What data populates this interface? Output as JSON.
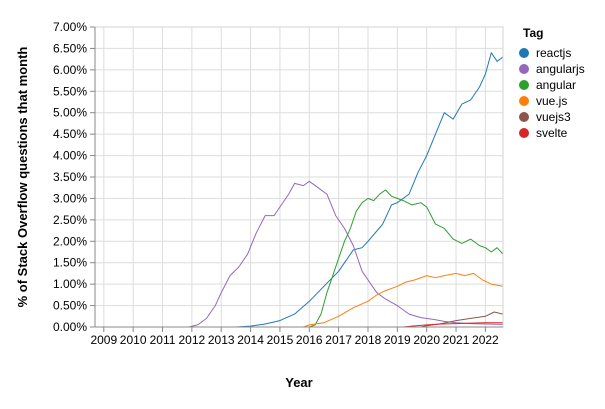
{
  "chart_data": {
    "type": "line",
    "title": "",
    "xlabel": "Year",
    "ylabel": "% of Stack Overflow questions that month",
    "xlim": [
      2008.7,
      2022.6
    ],
    "ylim": [
      0,
      7.0
    ],
    "x_ticks": [
      "2009",
      "2010",
      "2011",
      "2012",
      "2013",
      "2014",
      "2015",
      "2016",
      "2017",
      "2018",
      "2019",
      "2020",
      "2021",
      "2022"
    ],
    "y_ticks": [
      "0.00%",
      "0.50%",
      "1.00%",
      "1.50%",
      "2.00%",
      "2.50%",
      "3.00%",
      "3.50%",
      "4.00%",
      "4.50%",
      "5.00%",
      "5.50%",
      "6.00%",
      "6.50%",
      "7.00%"
    ],
    "grid": true,
    "legend": {
      "title": "Tag",
      "position": "right"
    },
    "series": [
      {
        "name": "reactjs",
        "color": "#1f77b4",
        "points": [
          [
            2008.7,
            0
          ],
          [
            2013.5,
            0
          ],
          [
            2014.0,
            0.02
          ],
          [
            2014.5,
            0.07
          ],
          [
            2015.0,
            0.15
          ],
          [
            2015.5,
            0.3
          ],
          [
            2016.0,
            0.6
          ],
          [
            2016.5,
            0.95
          ],
          [
            2017.0,
            1.3
          ],
          [
            2017.5,
            1.8
          ],
          [
            2017.8,
            1.85
          ],
          [
            2018.0,
            2.0
          ],
          [
            2018.5,
            2.4
          ],
          [
            2018.8,
            2.85
          ],
          [
            2019.0,
            2.9
          ],
          [
            2019.4,
            3.1
          ],
          [
            2019.7,
            3.6
          ],
          [
            2020.0,
            4.0
          ],
          [
            2020.3,
            4.5
          ],
          [
            2020.6,
            5.0
          ],
          [
            2020.9,
            4.85
          ],
          [
            2021.2,
            5.2
          ],
          [
            2021.5,
            5.3
          ],
          [
            2021.8,
            5.6
          ],
          [
            2022.0,
            5.9
          ],
          [
            2022.2,
            6.4
          ],
          [
            2022.4,
            6.2
          ],
          [
            2022.6,
            6.3
          ]
        ]
      },
      {
        "name": "angularjs",
        "color": "#9467bd",
        "points": [
          [
            2008.7,
            0
          ],
          [
            2011.9,
            0
          ],
          [
            2012.2,
            0.05
          ],
          [
            2012.5,
            0.2
          ],
          [
            2012.8,
            0.5
          ],
          [
            2013.0,
            0.8
          ],
          [
            2013.3,
            1.2
          ],
          [
            2013.6,
            1.4
          ],
          [
            2013.9,
            1.7
          ],
          [
            2014.2,
            2.2
          ],
          [
            2014.5,
            2.6
          ],
          [
            2014.8,
            2.6
          ],
          [
            2015.0,
            2.8
          ],
          [
            2015.3,
            3.1
          ],
          [
            2015.5,
            3.35
          ],
          [
            2015.8,
            3.3
          ],
          [
            2016.0,
            3.4
          ],
          [
            2016.3,
            3.25
          ],
          [
            2016.6,
            3.1
          ],
          [
            2016.9,
            2.6
          ],
          [
            2017.2,
            2.3
          ],
          [
            2017.5,
            1.9
          ],
          [
            2017.8,
            1.3
          ],
          [
            2018.0,
            1.1
          ],
          [
            2018.3,
            0.8
          ],
          [
            2018.6,
            0.65
          ],
          [
            2019.0,
            0.5
          ],
          [
            2019.4,
            0.3
          ],
          [
            2019.8,
            0.22
          ],
          [
            2020.2,
            0.18
          ],
          [
            2020.6,
            0.13
          ],
          [
            2021.0,
            0.1
          ],
          [
            2021.5,
            0.08
          ],
          [
            2022.0,
            0.07
          ],
          [
            2022.6,
            0.06
          ]
        ]
      },
      {
        "name": "angular",
        "color": "#2ca02c",
        "points": [
          [
            2008.7,
            0
          ],
          [
            2016.0,
            0
          ],
          [
            2016.2,
            0.05
          ],
          [
            2016.4,
            0.3
          ],
          [
            2016.6,
            0.8
          ],
          [
            2016.8,
            1.2
          ],
          [
            2017.0,
            1.6
          ],
          [
            2017.2,
            2.0
          ],
          [
            2017.4,
            2.3
          ],
          [
            2017.6,
            2.7
          ],
          [
            2017.8,
            2.9
          ],
          [
            2018.0,
            3.0
          ],
          [
            2018.2,
            2.95
          ],
          [
            2018.4,
            3.1
          ],
          [
            2018.6,
            3.2
          ],
          [
            2018.8,
            3.05
          ],
          [
            2019.0,
            3.0
          ],
          [
            2019.2,
            2.95
          ],
          [
            2019.5,
            2.85
          ],
          [
            2019.8,
            2.9
          ],
          [
            2020.0,
            2.8
          ],
          [
            2020.3,
            2.4
          ],
          [
            2020.6,
            2.3
          ],
          [
            2020.9,
            2.05
          ],
          [
            2021.2,
            1.95
          ],
          [
            2021.5,
            2.05
          ],
          [
            2021.8,
            1.9
          ],
          [
            2022.0,
            1.85
          ],
          [
            2022.2,
            1.75
          ],
          [
            2022.4,
            1.85
          ],
          [
            2022.6,
            1.7
          ]
        ]
      },
      {
        "name": "vue.js",
        "color": "#ff7f0e",
        "points": [
          [
            2008.7,
            0
          ],
          [
            2015.8,
            0
          ],
          [
            2016.0,
            0.05
          ],
          [
            2016.5,
            0.1
          ],
          [
            2017.0,
            0.25
          ],
          [
            2017.5,
            0.45
          ],
          [
            2018.0,
            0.6
          ],
          [
            2018.3,
            0.75
          ],
          [
            2018.6,
            0.85
          ],
          [
            2019.0,
            0.95
          ],
          [
            2019.3,
            1.05
          ],
          [
            2019.6,
            1.1
          ],
          [
            2020.0,
            1.2
          ],
          [
            2020.3,
            1.15
          ],
          [
            2020.6,
            1.2
          ],
          [
            2021.0,
            1.25
          ],
          [
            2021.3,
            1.2
          ],
          [
            2021.6,
            1.25
          ],
          [
            2021.9,
            1.1
          ],
          [
            2022.2,
            1.0
          ],
          [
            2022.6,
            0.95
          ]
        ]
      },
      {
        "name": "vuejs3",
        "color": "#8c564b",
        "points": [
          [
            2008.7,
            0
          ],
          [
            2019.8,
            0
          ],
          [
            2020.0,
            0.03
          ],
          [
            2020.5,
            0.08
          ],
          [
            2021.0,
            0.15
          ],
          [
            2021.5,
            0.2
          ],
          [
            2022.0,
            0.25
          ],
          [
            2022.3,
            0.35
          ],
          [
            2022.6,
            0.3
          ]
        ]
      },
      {
        "name": "svelte",
        "color": "#d62728",
        "points": [
          [
            2008.7,
            0
          ],
          [
            2019.2,
            0
          ],
          [
            2019.5,
            0.02
          ],
          [
            2020.0,
            0.05
          ],
          [
            2020.5,
            0.07
          ],
          [
            2021.0,
            0.08
          ],
          [
            2021.5,
            0.09
          ],
          [
            2022.0,
            0.1
          ],
          [
            2022.6,
            0.1
          ]
        ]
      }
    ]
  }
}
